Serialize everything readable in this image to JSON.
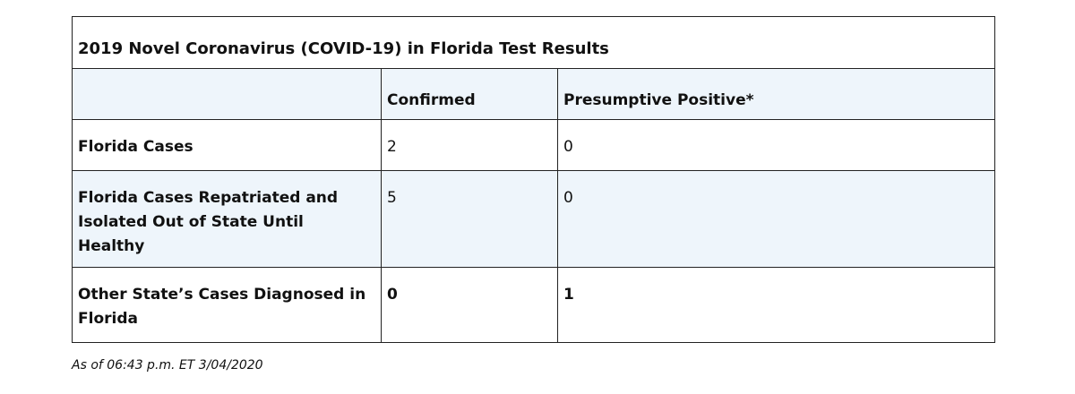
{
  "table": {
    "title": "2019 Novel Coronavirus (COVID-19) in Florida Test Results",
    "header": [
      "Confirmed",
      "Presumptive Positive*"
    ],
    "rows": [
      [
        "Florida Cases",
        2,
        0
      ],
      [
        "Florida Cases Repatriated and Isolated Out of State Until Healthy",
        5,
        0
      ],
      [
        "Other State’s Cases Diagnosed in Florida",
        0,
        1
      ]
    ]
  },
  "footnote": "As of 06:43 p.m. ET 3/04/2020"
}
